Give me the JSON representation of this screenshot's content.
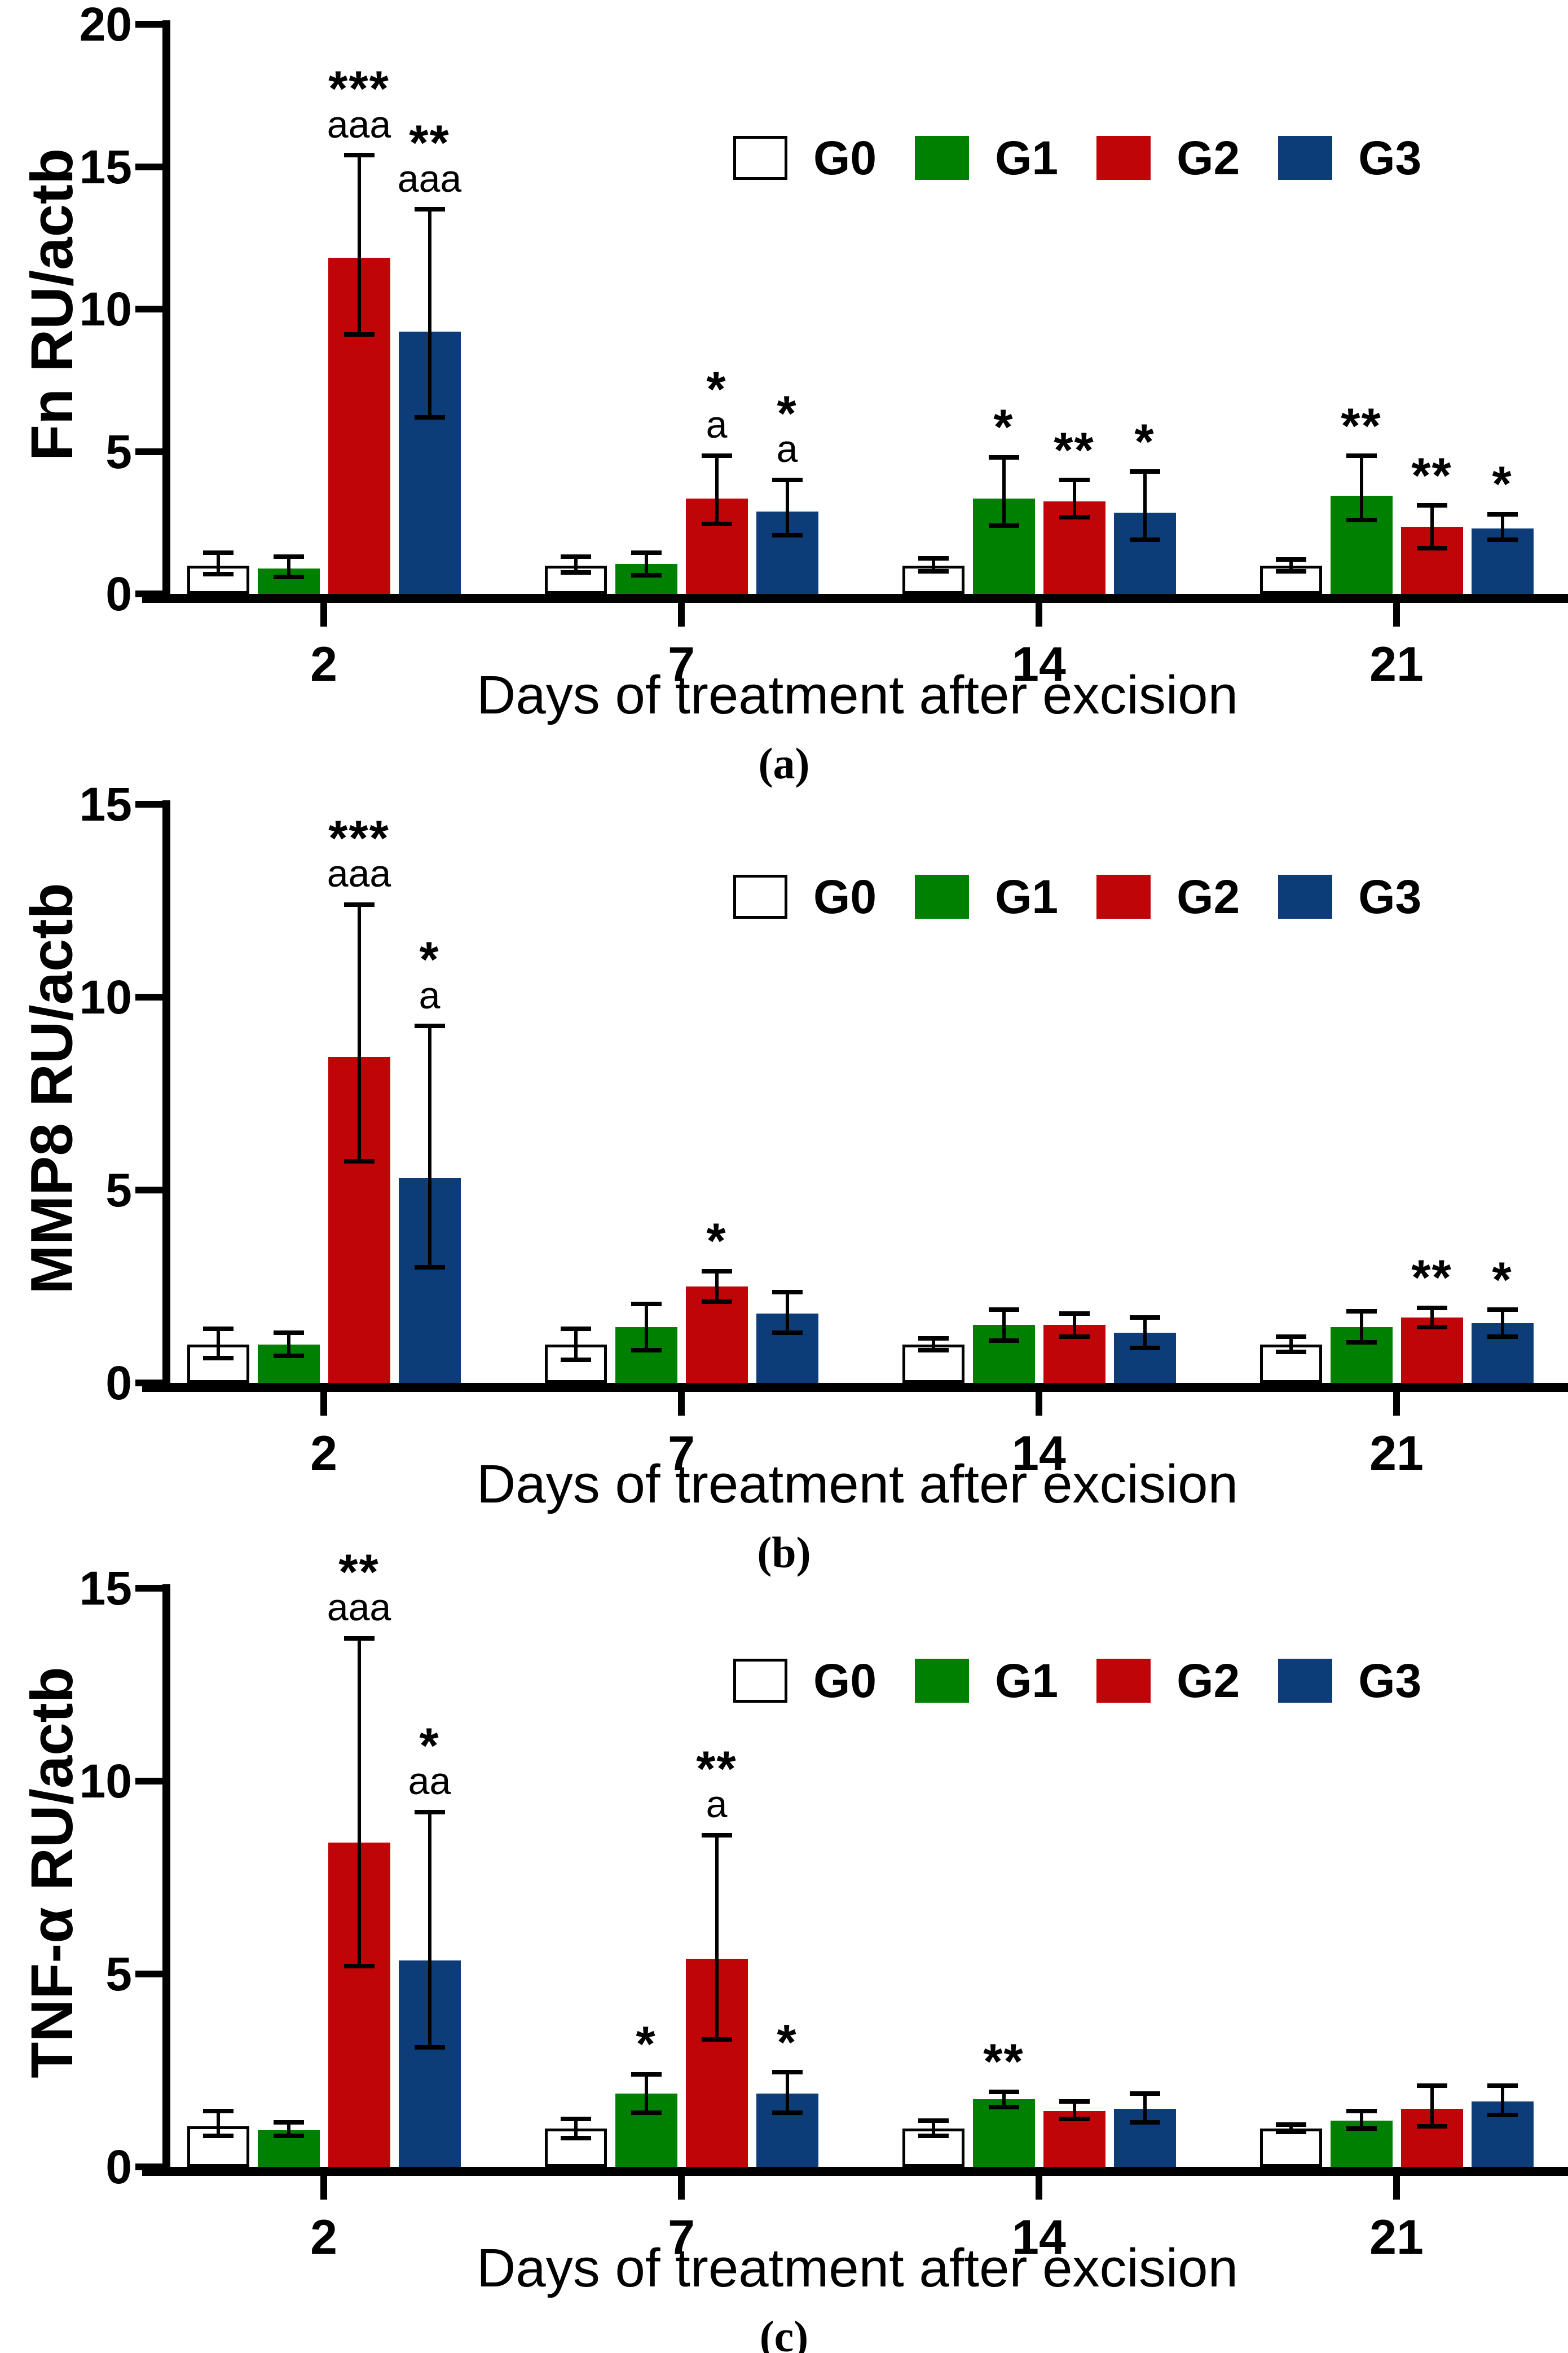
{
  "colors": {
    "G0": "#ffffff",
    "G1": "#008000",
    "G2": "#c00508",
    "G3": "#0d3d78",
    "axis": "#000000"
  },
  "chart_data": [
    {
      "type": "bar",
      "panel_letter": "(a)",
      "ylabel": "Fn RU/actb",
      "xlabel": "Days of treatment after excision",
      "ylim": [
        0,
        20
      ],
      "yticks": [
        0,
        5,
        10,
        15,
        20
      ],
      "categories": [
        "2",
        "7",
        "14",
        "21"
      ],
      "legend": [
        "G0",
        "G1",
        "G2",
        "G3"
      ],
      "legend_position": "top-right-inside",
      "grid": false,
      "series": [
        {
          "name": "G0",
          "values": [
            1.0,
            1.0,
            1.0,
            1.0
          ],
          "err_low": [
            0.7,
            0.75,
            0.8,
            0.8
          ],
          "err_high": [
            1.45,
            1.3,
            1.25,
            1.2
          ],
          "annotations": [
            [],
            [],
            [],
            []
          ]
        },
        {
          "name": "G1",
          "values": [
            0.9,
            1.05,
            3.35,
            3.45
          ],
          "err_low": [
            0.6,
            0.65,
            2.4,
            2.6
          ],
          "err_high": [
            1.3,
            1.45,
            4.8,
            4.85
          ],
          "annotations": [
            [],
            [],
            [
              "*"
            ],
            [
              "**"
            ]
          ]
        },
        {
          "name": "G2",
          "values": [
            11.8,
            3.35,
            3.25,
            2.35
          ],
          "err_low": [
            9.1,
            2.45,
            2.7,
            1.6
          ],
          "err_high": [
            15.4,
            4.85,
            4.0,
            3.1
          ],
          "annotations": [
            [
              "***",
              "aaa"
            ],
            [
              "*",
              "a"
            ],
            [
              "**"
            ],
            [
              "**"
            ]
          ]
        },
        {
          "name": "G3",
          "values": [
            9.2,
            2.9,
            2.85,
            2.3
          ],
          "err_low": [
            6.2,
            2.05,
            1.9,
            1.9
          ],
          "err_high": [
            13.5,
            4.0,
            4.3,
            2.8
          ],
          "annotations": [
            [
              "**",
              "aaa"
            ],
            [
              "*",
              "a"
            ],
            [
              "*"
            ],
            [
              "*"
            ]
          ]
        }
      ]
    },
    {
      "type": "bar",
      "panel_letter": "(b)",
      "ylabel": "MMP8 RU/actb",
      "xlabel": "Days of treatment after excision",
      "ylim": [
        0,
        15
      ],
      "yticks": [
        0,
        5,
        10,
        15
      ],
      "categories": [
        "2",
        "7",
        "14",
        "21"
      ],
      "legend": [
        "G0",
        "G1",
        "G2",
        "G3"
      ],
      "legend_position": "top-right-inside",
      "grid": false,
      "series": [
        {
          "name": "G0",
          "values": [
            1.0,
            1.0,
            1.0,
            1.0
          ],
          "err_low": [
            0.65,
            0.6,
            0.85,
            0.8
          ],
          "err_high": [
            1.4,
            1.4,
            1.15,
            1.2
          ],
          "annotations": [
            [],
            [],
            [],
            []
          ]
        },
        {
          "name": "G1",
          "values": [
            1.0,
            1.45,
            1.5,
            1.45
          ],
          "err_low": [
            0.7,
            0.85,
            1.1,
            1.05
          ],
          "err_high": [
            1.3,
            2.05,
            1.9,
            1.85
          ],
          "annotations": [
            [],
            [],
            [],
            []
          ]
        },
        {
          "name": "G2",
          "values": [
            8.45,
            2.5,
            1.5,
            1.7
          ],
          "err_low": [
            5.75,
            2.1,
            1.2,
            1.45
          ],
          "err_high": [
            12.4,
            2.9,
            1.8,
            1.95
          ],
          "annotations": [
            [
              "***",
              "aaa"
            ],
            [
              "*"
            ],
            [],
            [
              "**"
            ]
          ]
        },
        {
          "name": "G3",
          "values": [
            5.3,
            1.8,
            1.3,
            1.55
          ],
          "err_low": [
            3.0,
            1.3,
            0.9,
            1.2
          ],
          "err_high": [
            9.25,
            2.35,
            1.7,
            1.9
          ],
          "annotations": [
            [
              "*",
              "a"
            ],
            [],
            [],
            [
              "*"
            ]
          ]
        }
      ]
    },
    {
      "type": "bar",
      "panel_letter": "(c)",
      "ylabel": "TNF-α RU/actb",
      "xlabel": "Days of treatment after excision",
      "ylim": [
        0,
        15
      ],
      "yticks": [
        0,
        5,
        10,
        15
      ],
      "categories": [
        "2",
        "7",
        "14",
        "21"
      ],
      "legend": [
        "G0",
        "G1",
        "G2",
        "G3"
      ],
      "legend_position": "top-right-inside",
      "grid": false,
      "series": [
        {
          "name": "G0",
          "values": [
            1.05,
            1.0,
            1.0,
            1.0
          ],
          "err_low": [
            0.8,
            0.75,
            0.8,
            0.9
          ],
          "err_high": [
            1.45,
            1.25,
            1.2,
            1.1
          ],
          "annotations": [
            [],
            [],
            [],
            []
          ]
        },
        {
          "name": "G1",
          "values": [
            0.95,
            1.9,
            1.75,
            1.2
          ],
          "err_low": [
            0.8,
            1.4,
            1.55,
            1.0
          ],
          "err_high": [
            1.15,
            2.4,
            1.95,
            1.45
          ],
          "annotations": [
            [],
            [
              "*"
            ],
            [
              "**"
            ],
            []
          ]
        },
        {
          "name": "G2",
          "values": [
            8.4,
            5.4,
            1.45,
            1.5
          ],
          "err_low": [
            5.2,
            3.3,
            1.25,
            1.05
          ],
          "err_high": [
            13.7,
            8.6,
            1.7,
            2.1
          ],
          "annotations": [
            [
              "**",
              "aaa"
            ],
            [
              "**",
              "a"
            ],
            [],
            []
          ]
        },
        {
          "name": "G3",
          "values": [
            5.35,
            1.9,
            1.5,
            1.7
          ],
          "err_low": [
            3.1,
            1.4,
            1.15,
            1.35
          ],
          "err_high": [
            9.2,
            2.45,
            1.9,
            2.1
          ],
          "annotations": [
            [
              "*",
              "aa"
            ],
            [
              "*"
            ],
            [],
            []
          ]
        }
      ]
    }
  ]
}
